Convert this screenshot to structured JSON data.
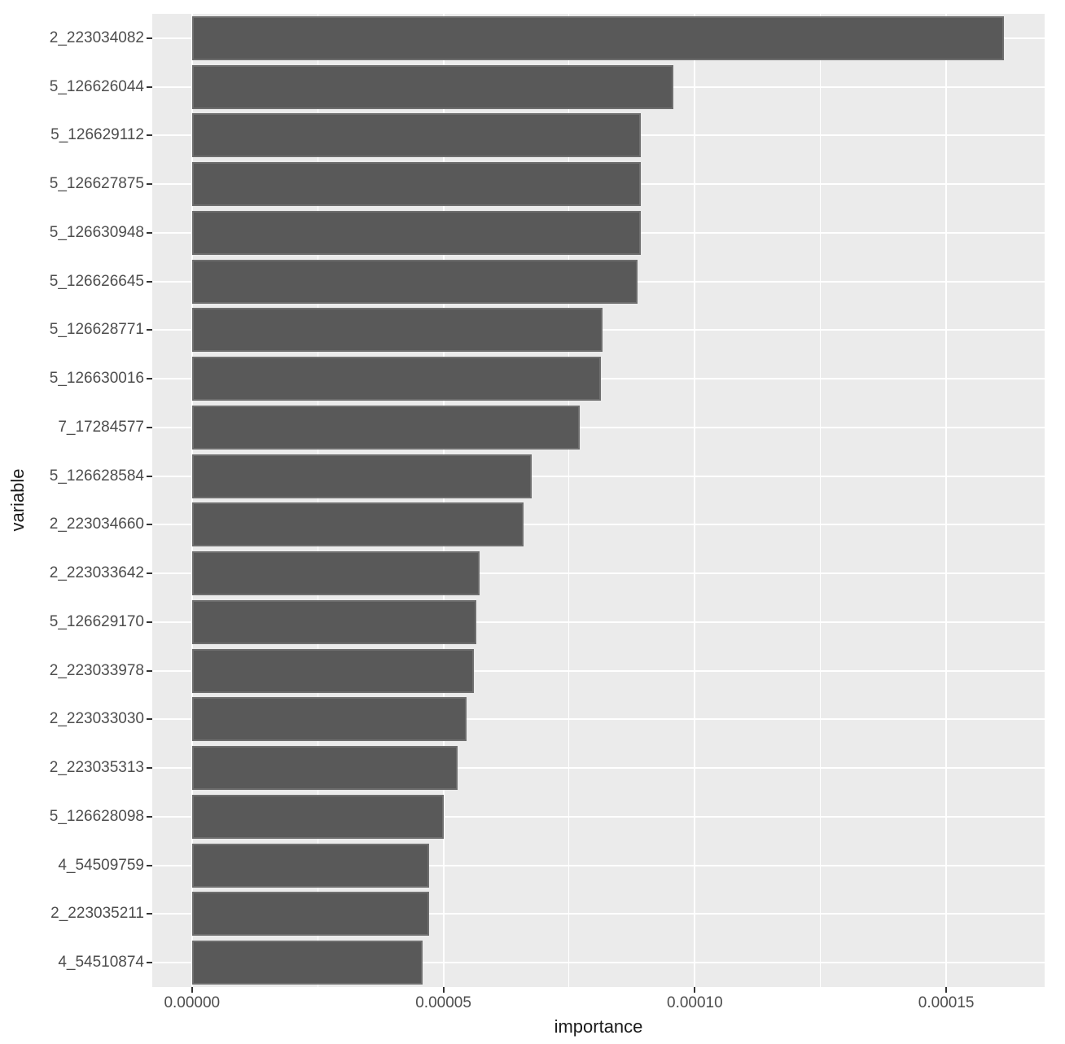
{
  "figure": {
    "background": "#FFFFFF",
    "panel_background": "#EBEBEB",
    "grid_color": "#FFFFFF",
    "bar_fill": "#595959",
    "bar_edge": "#6E6E6E",
    "tick_label_color": "#4D4D4D",
    "axis_title_color": "#1A1A1A"
  },
  "chart_data": {
    "type": "bar",
    "orientation": "horizontal",
    "title": "",
    "xlabel": "importance",
    "ylabel": "variable",
    "legend": "none",
    "grid": "major+minor vertical, major horizontal per category",
    "categories": [
      "2_223034082",
      "5_126626044",
      "5_126629112",
      "5_126627875",
      "5_126630948",
      "5_126626645",
      "5_126628771",
      "5_126630016",
      "7_17284577",
      "5_126628584",
      "2_223034660",
      "2_223033642",
      "5_126629170",
      "2_223033978",
      "2_223033030",
      "2_223035313",
      "5_126628098",
      "4_54509759",
      "2_223035211",
      "4_54510874"
    ],
    "values": [
      0.0001615,
      9.57e-05,
      8.92e-05,
      8.92e-05,
      8.92e-05,
      8.86e-05,
      8.16e-05,
      8.13e-05,
      7.71e-05,
      6.75e-05,
      6.59e-05,
      5.72e-05,
      5.65e-05,
      5.6e-05,
      5.46e-05,
      5.28e-05,
      5e-05,
      4.71e-05,
      4.71e-05,
      4.58e-05
    ],
    "x_ticks": {
      "values": [
        0.0,
        5e-05,
        0.0001,
        0.00015
      ],
      "labels": [
        "0.00000",
        "0.00005",
        "0.00010",
        "0.00015"
      ]
    },
    "xlim": [
      -7.9e-06,
      0.00016957
    ]
  }
}
